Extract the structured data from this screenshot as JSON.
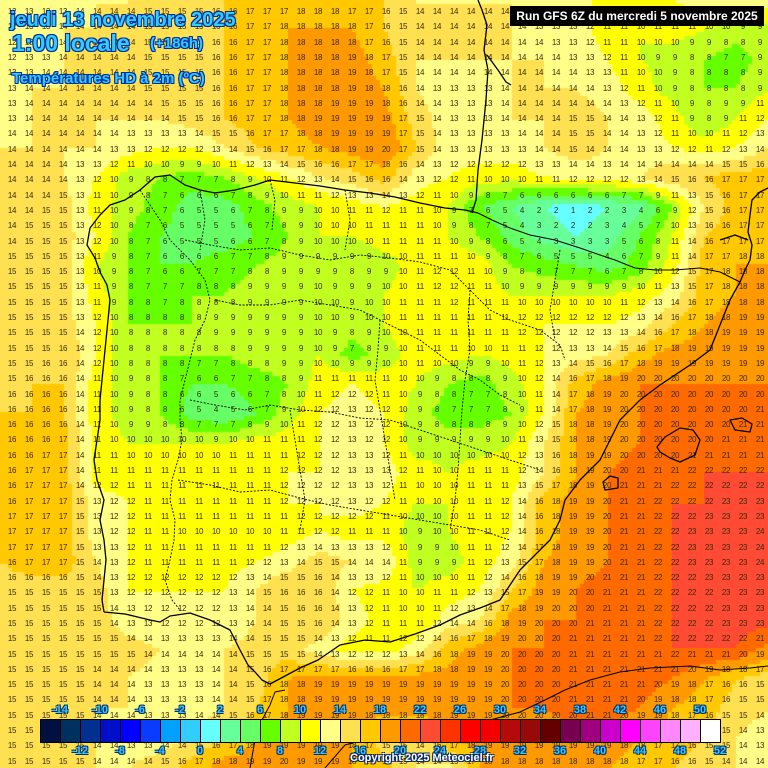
{
  "header": {
    "date": "jeudi 13 novembre 2025",
    "time": "1:00 locale",
    "lead": "(+186h)",
    "parameter": "Températures HD à 2m (ºC)",
    "run": "Run GFS 6Z du mercredi 5 novembre 2025"
  },
  "footer": {
    "copyright": "Copyright 2025 Meteociel.fr"
  },
  "legend": {
    "unit": "°C",
    "top_labels": [
      "-14",
      "-10",
      "-6",
      "-2",
      "2",
      "6",
      "10",
      "14",
      "18",
      "22",
      "26",
      "30",
      "34",
      "38",
      "42",
      "46",
      "50"
    ],
    "bottom_labels": [
      "-12",
      "-8",
      "-4",
      "0",
      "4",
      "8",
      "12",
      "16",
      "20",
      "24",
      "28",
      "32",
      "36",
      "40",
      "44",
      "48",
      "52"
    ],
    "swatches": [
      {
        "min": -16,
        "color": "#001040"
      },
      {
        "min": -14,
        "color": "#00305f"
      },
      {
        "min": -12,
        "color": "#003090"
      },
      {
        "min": -10,
        "color": "#0010c8"
      },
      {
        "min": -8,
        "color": "#0000ff"
      },
      {
        "min": -6,
        "color": "#0a3cff"
      },
      {
        "min": -4,
        "color": "#00a0ff"
      },
      {
        "min": -2,
        "color": "#33ccff"
      },
      {
        "min": 0,
        "color": "#66ffff"
      },
      {
        "min": 2,
        "color": "#66ff99"
      },
      {
        "min": 4,
        "color": "#66ff66"
      },
      {
        "min": 6,
        "color": "#66ff00"
      },
      {
        "min": 8,
        "color": "#c0ff20"
      },
      {
        "min": 10,
        "color": "#ffff00"
      },
      {
        "min": 12,
        "color": "#ffff88"
      },
      {
        "min": 14,
        "color": "#ffe050"
      },
      {
        "min": 16,
        "color": "#ffc800"
      },
      {
        "min": 18,
        "color": "#ff9900"
      },
      {
        "min": 20,
        "color": "#ff6a00"
      },
      {
        "min": 22,
        "color": "#ff4b33"
      },
      {
        "min": 24,
        "color": "#ff3300"
      },
      {
        "min": 26,
        "color": "#ff0000"
      },
      {
        "min": 28,
        "color": "#f50000"
      },
      {
        "min": 30,
        "color": "#b40a0a"
      },
      {
        "min": 32,
        "color": "#960a0a"
      },
      {
        "min": 34,
        "color": "#640000"
      },
      {
        "min": 36,
        "color": "#780050"
      },
      {
        "min": 38,
        "color": "#a00080"
      },
      {
        "min": 40,
        "color": "#cc00cc"
      },
      {
        "min": 42,
        "color": "#ff00ff"
      },
      {
        "min": 44,
        "color": "#ff44ff"
      },
      {
        "min": 46,
        "color": "#ff88ff"
      },
      {
        "min": 48,
        "color": "#ffb0ff"
      },
      {
        "min": 50,
        "color": "#ffffff"
      }
    ]
  },
  "map": {
    "region": "Péninsule Ibérique",
    "grid_step_x": 17,
    "grid_step_y": 15.3,
    "coarse_field_note": "rows top→bottom, cols left→right, ~32px spacing",
    "field": [
      [
        12,
        13,
        13,
        14,
        14,
        15,
        15,
        16,
        17,
        17,
        18,
        17,
        16,
        14,
        14,
        14,
        14,
        13,
        13,
        11,
        12,
        12,
        13,
        13,
        13
      ],
      [
        12,
        13,
        14,
        14,
        14,
        15,
        15,
        16,
        17,
        18,
        18,
        18,
        16,
        14,
        14,
        14,
        14,
        13,
        13,
        11,
        10,
        11,
        10,
        9,
        9
      ],
      [
        12,
        13,
        14,
        14,
        14,
        15,
        15,
        16,
        17,
        18,
        18,
        19,
        17,
        14,
        14,
        14,
        14,
        14,
        13,
        12,
        10,
        9,
        8,
        7,
        9
      ],
      [
        13,
        14,
        14,
        14,
        14,
        15,
        15,
        16,
        17,
        18,
        18,
        19,
        18,
        14,
        13,
        13,
        14,
        14,
        14,
        13,
        11,
        9,
        8,
        8,
        10
      ],
      [
        13,
        14,
        14,
        14,
        14,
        14,
        15,
        16,
        17,
        18,
        19,
        19,
        19,
        15,
        13,
        13,
        14,
        14,
        15,
        14,
        13,
        11,
        8,
        10,
        12
      ],
      [
        14,
        14,
        14,
        14,
        13,
        12,
        12,
        14,
        16,
        17,
        18,
        19,
        20,
        16,
        13,
        13,
        13,
        14,
        15,
        14,
        13,
        12,
        11,
        12,
        14
      ],
      [
        14,
        14,
        14,
        12,
        9,
        8,
        7,
        8,
        10,
        12,
        14,
        15,
        17,
        13,
        12,
        11,
        11,
        12,
        13,
        13,
        14,
        16,
        16,
        17,
        17
      ],
      [
        14,
        14,
        15,
        11,
        9,
        7,
        5,
        5,
        7,
        9,
        10,
        11,
        12,
        11,
        10,
        6,
        4,
        2,
        1,
        2,
        3,
        8,
        14,
        17,
        17
      ],
      [
        14,
        15,
        15,
        12,
        8,
        6,
        5,
        5,
        6,
        8,
        10,
        10,
        11,
        11,
        10,
        8,
        5,
        3,
        2,
        3,
        6,
        10,
        16,
        17,
        17
      ],
      [
        15,
        15,
        15,
        10,
        8,
        6,
        6,
        7,
        8,
        9,
        9,
        8,
        9,
        11,
        12,
        11,
        8,
        7,
        6,
        5,
        7,
        11,
        17,
        18,
        18
      ],
      [
        15,
        15,
        15,
        11,
        8,
        7,
        8,
        8,
        9,
        9,
        10,
        9,
        10,
        11,
        12,
        11,
        10,
        10,
        10,
        10,
        11,
        13,
        17,
        18,
        18
      ],
      [
        15,
        15,
        15,
        12,
        8,
        8,
        8,
        9,
        9,
        9,
        10,
        9,
        10,
        11,
        11,
        11,
        12,
        12,
        12,
        12,
        13,
        16,
        18,
        19,
        19
      ],
      [
        15,
        15,
        16,
        12,
        8,
        8,
        8,
        8,
        9,
        9,
        10,
        7,
        9,
        11,
        11,
        10,
        11,
        12,
        13,
        14,
        17,
        19,
        19,
        19,
        19
      ],
      [
        15,
        16,
        16,
        11,
        9,
        8,
        6,
        6,
        7,
        8,
        11,
        12,
        11,
        10,
        8,
        7,
        9,
        12,
        17,
        19,
        20,
        20,
        20,
        20,
        20
      ],
      [
        16,
        16,
        16,
        11,
        9,
        8,
        5,
        4,
        6,
        9,
        12,
        13,
        12,
        9,
        7,
        7,
        8,
        12,
        18,
        19,
        20,
        20,
        20,
        20,
        21
      ],
      [
        16,
        16,
        17,
        11,
        10,
        10,
        10,
        10,
        11,
        11,
        12,
        13,
        12,
        9,
        9,
        9,
        10,
        14,
        18,
        19,
        20,
        20,
        20,
        21,
        21
      ],
      [
        16,
        17,
        17,
        11,
        11,
        11,
        11,
        11,
        11,
        12,
        12,
        13,
        13,
        11,
        10,
        11,
        11,
        14,
        18,
        20,
        21,
        21,
        22,
        22,
        22
      ],
      [
        16,
        17,
        17,
        13,
        12,
        11,
        11,
        11,
        11,
        12,
        12,
        13,
        12,
        10,
        10,
        11,
        12,
        17,
        19,
        20,
        21,
        22,
        22,
        23,
        23
      ],
      [
        17,
        17,
        17,
        13,
        12,
        11,
        10,
        10,
        10,
        11,
        12,
        11,
        11,
        9,
        10,
        11,
        12,
        17,
        19,
        20,
        21,
        22,
        23,
        23,
        24
      ],
      [
        16,
        17,
        17,
        14,
        12,
        11,
        11,
        11,
        12,
        13,
        15,
        14,
        14,
        9,
        9,
        11,
        13,
        18,
        19,
        20,
        21,
        22,
        23,
        23,
        24
      ],
      [
        15,
        15,
        15,
        15,
        12,
        12,
        12,
        12,
        14,
        16,
        16,
        12,
        11,
        10,
        11,
        12,
        16,
        19,
        20,
        21,
        21,
        22,
        22,
        23,
        23
      ],
      [
        15,
        15,
        15,
        15,
        13,
        12,
        12,
        12,
        14,
        15,
        16,
        13,
        11,
        10,
        13,
        14,
        19,
        20,
        20,
        21,
        21,
        22,
        22,
        23,
        23
      ],
      [
        15,
        15,
        15,
        15,
        15,
        14,
        14,
        14,
        15,
        15,
        13,
        11,
        11,
        13,
        17,
        19,
        20,
        20,
        21,
        21,
        21,
        22,
        22,
        22,
        19
      ],
      [
        15,
        15,
        15,
        14,
        14,
        13,
        13,
        14,
        15,
        18,
        19,
        19,
        19,
        19,
        19,
        19,
        20,
        20,
        21,
        21,
        21,
        20,
        18,
        16,
        15
      ],
      [
        15,
        15,
        15,
        14,
        14,
        13,
        13,
        14,
        16,
        18,
        19,
        19,
        19,
        19,
        19,
        19,
        20,
        20,
        21,
        21,
        20,
        18,
        17,
        15,
        14
      ],
      [
        16,
        15,
        15,
        14,
        13,
        13,
        14,
        16,
        18,
        19,
        19,
        18,
        15,
        14,
        18,
        19,
        19,
        19,
        19,
        19,
        18,
        17,
        16,
        14,
        13
      ],
      [
        15,
        15,
        15,
        14,
        14,
        15,
        17,
        19,
        19,
        20,
        19,
        18,
        17,
        14,
        13,
        18,
        18,
        18,
        18,
        18,
        17,
        16,
        15,
        14,
        14
      ]
    ]
  }
}
